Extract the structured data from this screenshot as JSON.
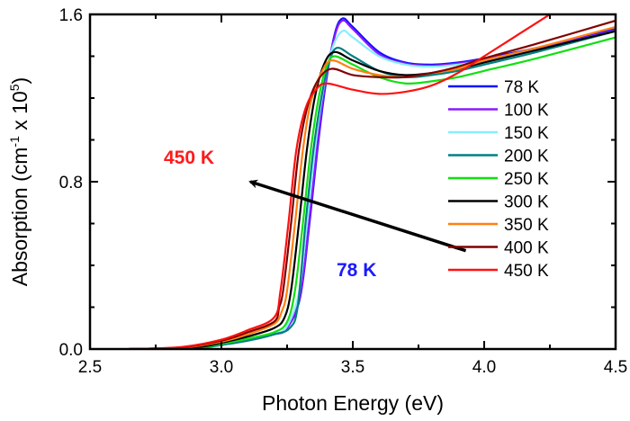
{
  "chart_data": {
    "type": "line",
    "title": "",
    "xlabel": "Photon Energy (eV)",
    "ylabel_parts": [
      "Absorption (cm",
      "-1",
      " x 10",
      "5",
      ")"
    ],
    "xlim": [
      2.5,
      4.5
    ],
    "ylim": [
      0.0,
      1.6
    ],
    "xticks": [
      2.5,
      3.0,
      3.5,
      4.0,
      4.5
    ],
    "xtick_labels": [
      "2.5",
      "3.0",
      "3.5",
      "4.0",
      "4.5"
    ],
    "yticks": [
      0.0,
      0.8,
      1.6
    ],
    "ytick_labels": [
      "0.0",
      "0.8",
      "1.6"
    ],
    "grid": false,
    "legend_placement": "right",
    "annotations": [
      {
        "text": "450 K",
        "color": "#ff1a1a"
      },
      {
        "text": "78 K",
        "color": "#1a1aff"
      }
    ],
    "arrow": {
      "from": [
        3.93,
        0.47
      ],
      "to": [
        3.11,
        0.8
      ]
    },
    "series": [
      {
        "name": "78 K",
        "color": "#1010ff",
        "points": [
          [
            2.65,
            0
          ],
          [
            2.9,
            0.005
          ],
          [
            3.0,
            0.02
          ],
          [
            3.1,
            0.04
          ],
          [
            3.2,
            0.07
          ],
          [
            3.25,
            0.1
          ],
          [
            3.3,
            0.25
          ],
          [
            3.335,
            0.6
          ],
          [
            3.365,
            0.95
          ],
          [
            3.395,
            1.25
          ],
          [
            3.43,
            1.5
          ],
          [
            3.46,
            1.58
          ],
          [
            3.5,
            1.54
          ],
          [
            3.6,
            1.42
          ],
          [
            3.7,
            1.37
          ],
          [
            3.8,
            1.36
          ],
          [
            3.9,
            1.37
          ],
          [
            4.0,
            1.39
          ],
          [
            4.2,
            1.44
          ],
          [
            4.5,
            1.53
          ]
        ]
      },
      {
        "name": "100 K",
        "color": "#8a1aff",
        "points": [
          [
            2.65,
            0
          ],
          [
            2.9,
            0.005
          ],
          [
            3.0,
            0.02
          ],
          [
            3.1,
            0.04
          ],
          [
            3.2,
            0.07
          ],
          [
            3.25,
            0.1
          ],
          [
            3.3,
            0.26
          ],
          [
            3.333,
            0.6
          ],
          [
            3.363,
            0.95
          ],
          [
            3.393,
            1.25
          ],
          [
            3.43,
            1.49
          ],
          [
            3.46,
            1.57
          ],
          [
            3.5,
            1.53
          ],
          [
            3.6,
            1.41
          ],
          [
            3.7,
            1.365
          ],
          [
            3.8,
            1.355
          ],
          [
            3.9,
            1.365
          ],
          [
            4.0,
            1.385
          ],
          [
            4.2,
            1.435
          ],
          [
            4.5,
            1.525
          ]
        ]
      },
      {
        "name": "150 K",
        "color": "#88eeff",
        "points": [
          [
            2.65,
            0
          ],
          [
            2.9,
            0.005
          ],
          [
            3.0,
            0.02
          ],
          [
            3.1,
            0.04
          ],
          [
            3.2,
            0.07
          ],
          [
            3.25,
            0.11
          ],
          [
            3.295,
            0.27
          ],
          [
            3.325,
            0.6
          ],
          [
            3.355,
            0.95
          ],
          [
            3.385,
            1.22
          ],
          [
            3.42,
            1.43
          ],
          [
            3.46,
            1.52
          ],
          [
            3.5,
            1.49
          ],
          [
            3.6,
            1.4
          ],
          [
            3.7,
            1.36
          ],
          [
            3.8,
            1.35
          ],
          [
            3.9,
            1.36
          ],
          [
            4.0,
            1.38
          ],
          [
            4.2,
            1.43
          ],
          [
            4.5,
            1.52
          ]
        ]
      },
      {
        "name": "200 K",
        "color": "#008080",
        "points": [
          [
            2.65,
            0
          ],
          [
            2.9,
            0.005
          ],
          [
            3.0,
            0.02
          ],
          [
            3.1,
            0.04
          ],
          [
            3.2,
            0.07
          ],
          [
            3.26,
            0.1
          ],
          [
            3.29,
            0.2
          ],
          [
            3.32,
            0.6
          ],
          [
            3.35,
            0.95
          ],
          [
            3.38,
            1.2
          ],
          [
            3.41,
            1.37
          ],
          [
            3.44,
            1.44
          ],
          [
            3.5,
            1.4
          ],
          [
            3.6,
            1.33
          ],
          [
            3.7,
            1.3
          ],
          [
            3.8,
            1.31
          ],
          [
            3.9,
            1.33
          ],
          [
            4.0,
            1.36
          ],
          [
            4.2,
            1.42
          ],
          [
            4.5,
            1.52
          ]
        ]
      },
      {
        "name": "250 K",
        "color": "#10e010",
        "points": [
          [
            2.65,
            0
          ],
          [
            2.9,
            0.006
          ],
          [
            3.0,
            0.025
          ],
          [
            3.1,
            0.05
          ],
          [
            3.2,
            0.08
          ],
          [
            3.25,
            0.13
          ],
          [
            3.28,
            0.28
          ],
          [
            3.31,
            0.6
          ],
          [
            3.34,
            0.95
          ],
          [
            3.37,
            1.2
          ],
          [
            3.4,
            1.35
          ],
          [
            3.43,
            1.4
          ],
          [
            3.5,
            1.36
          ],
          [
            3.6,
            1.3
          ],
          [
            3.7,
            1.27
          ],
          [
            3.8,
            1.28
          ],
          [
            3.9,
            1.3
          ],
          [
            4.0,
            1.33
          ],
          [
            4.2,
            1.39
          ],
          [
            4.5,
            1.49
          ]
        ]
      },
      {
        "name": "300 K",
        "color": "#000000",
        "points": [
          [
            2.65,
            0
          ],
          [
            2.9,
            0.008
          ],
          [
            3.0,
            0.03
          ],
          [
            3.1,
            0.06
          ],
          [
            3.2,
            0.1
          ],
          [
            3.24,
            0.15
          ],
          [
            3.265,
            0.28
          ],
          [
            3.295,
            0.6
          ],
          [
            3.325,
            0.95
          ],
          [
            3.355,
            1.2
          ],
          [
            3.39,
            1.36
          ],
          [
            3.43,
            1.42
          ],
          [
            3.5,
            1.38
          ],
          [
            3.6,
            1.33
          ],
          [
            3.7,
            1.31
          ],
          [
            3.8,
            1.32
          ],
          [
            3.9,
            1.34
          ],
          [
            4.0,
            1.37
          ],
          [
            4.2,
            1.43
          ],
          [
            4.5,
            1.52
          ]
        ]
      },
      {
        "name": "350 K",
        "color": "#ff8010",
        "points": [
          [
            2.65,
            0
          ],
          [
            2.85,
            0.006
          ],
          [
            3.0,
            0.035
          ],
          [
            3.1,
            0.07
          ],
          [
            3.2,
            0.12
          ],
          [
            3.23,
            0.18
          ],
          [
            3.25,
            0.28
          ],
          [
            3.28,
            0.6
          ],
          [
            3.31,
            0.95
          ],
          [
            3.34,
            1.18
          ],
          [
            3.38,
            1.32
          ],
          [
            3.42,
            1.38
          ],
          [
            3.5,
            1.34
          ],
          [
            3.6,
            1.31
          ],
          [
            3.7,
            1.3
          ],
          [
            3.8,
            1.32
          ],
          [
            3.9,
            1.34
          ],
          [
            4.0,
            1.38
          ],
          [
            4.2,
            1.44
          ],
          [
            4.5,
            1.54
          ]
        ]
      },
      {
        "name": "400 K",
        "color": "#800000",
        "points": [
          [
            2.65,
            0
          ],
          [
            2.85,
            0.008
          ],
          [
            3.0,
            0.04
          ],
          [
            3.1,
            0.08
          ],
          [
            3.2,
            0.13
          ],
          [
            3.22,
            0.2
          ],
          [
            3.235,
            0.28
          ],
          [
            3.265,
            0.6
          ],
          [
            3.295,
            0.95
          ],
          [
            3.33,
            1.17
          ],
          [
            3.37,
            1.29
          ],
          [
            3.42,
            1.34
          ],
          [
            3.5,
            1.31
          ],
          [
            3.6,
            1.3
          ],
          [
            3.7,
            1.3
          ],
          [
            3.8,
            1.32
          ],
          [
            3.9,
            1.35
          ],
          [
            4.0,
            1.39
          ],
          [
            4.2,
            1.46
          ],
          [
            4.5,
            1.57
          ]
        ]
      },
      {
        "name": "450 K",
        "color": "#ff1010",
        "points": [
          [
            2.65,
            0
          ],
          [
            2.85,
            0.01
          ],
          [
            3.0,
            0.045
          ],
          [
            3.1,
            0.09
          ],
          [
            3.2,
            0.15
          ],
          [
            3.225,
            0.28
          ],
          [
            3.255,
            0.6
          ],
          [
            3.285,
            0.95
          ],
          [
            3.32,
            1.15
          ],
          [
            3.36,
            1.24
          ],
          [
            3.4,
            1.27
          ],
          [
            3.5,
            1.24
          ],
          [
            3.6,
            1.22
          ],
          [
            3.7,
            1.23
          ],
          [
            3.8,
            1.26
          ],
          [
            3.9,
            1.32
          ],
          [
            4.0,
            1.4
          ],
          [
            4.1,
            1.48
          ],
          [
            4.2,
            1.56
          ],
          [
            4.25,
            1.6
          ]
        ]
      }
    ]
  }
}
